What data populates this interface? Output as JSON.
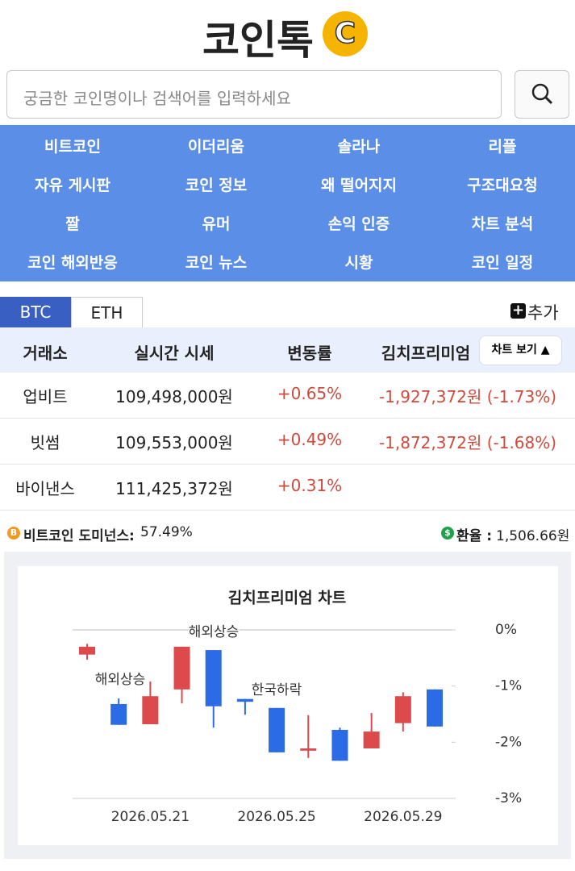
{
  "header": {
    "logo": "코인톡",
    "logo_icon": "C"
  },
  "search": {
    "placeholder": "궁금한 코인명이나 검색어를 입력하세요"
  },
  "nav": [
    "비트코인",
    "이더리움",
    "솔라나",
    "리플",
    "자유 게시판",
    "코인 정보",
    "왜 떨어지지",
    "구조대요청",
    "짤",
    "유머",
    "손익 인증",
    "차트 분석",
    "코인 해외반응",
    "코인 뉴스",
    "시황",
    "코인 일정"
  ],
  "tabs": [
    "BTC",
    "ETH"
  ],
  "add_button": "추가",
  "table": {
    "headers": [
      "거래소",
      "실시간 시세",
      "변동률",
      "김치프리미엄"
    ],
    "chart_button": "차트 보기 ▲",
    "rows": [
      [
        "업비트",
        "109,498,000원",
        "+0.65%",
        "-1,927,372원 (-1.73%)"
      ],
      [
        "빗썸",
        "109,553,000원",
        "+0.49%",
        "-1,872,372원 (-1.68%)"
      ],
      [
        "바이낸스",
        "111,425,372원",
        "+0.31%"
      ]
    ]
  },
  "info": {
    "dominance_label": "비트코인 도미넌스:",
    "dominance_value": "57.49%",
    "rate_label": "환율 :",
    "rate_value": "1,506.66원"
  },
  "chart_data": {
    "type": "candlestick",
    "title": "김치프리미엄 차트",
    "categories": [
      null,
      null,
      "2026.05.21",
      null,
      null,
      null,
      "2026.05.25",
      null,
      null,
      null,
      "2026.05.29",
      null
    ],
    "open": [
      -0.44,
      -1.32,
      -1.68,
      -1.06,
      -0.36,
      -1.23,
      -1.39,
      -2.15,
      -1.78,
      -2.11,
      -1.66,
      -1.06
    ],
    "high": [
      -0.25,
      -1.22,
      -0.92,
      -0.3,
      -0.36,
      -1.23,
      -1.39,
      -1.52,
      -1.74,
      -1.48,
      -1.11,
      -1.06
    ],
    "low": [
      -0.53,
      -1.69,
      -1.68,
      -1.31,
      -1.74,
      -1.51,
      -2.18,
      -2.28,
      -2.33,
      -2.11,
      -1.81,
      -1.72
    ],
    "close": [
      -0.3,
      -1.69,
      -1.18,
      -0.3,
      -1.36,
      -1.28,
      -2.18,
      -2.11,
      -2.33,
      -1.81,
      -1.18,
      -1.72
    ],
    "up_color": "#dc4a4c",
    "down_color": "#2b6be6",
    "annotations": [
      "해외상승",
      "해외상승",
      "한국하락"
    ],
    "ylim": [
      -3,
      0
    ],
    "yticks": [
      {
        "value": 0,
        "label": "0%"
      },
      {
        "value": -1,
        "label": "-1%"
      },
      {
        "value": -2,
        "label": "-2%"
      },
      {
        "value": -3,
        "label": "-3%"
      }
    ]
  }
}
